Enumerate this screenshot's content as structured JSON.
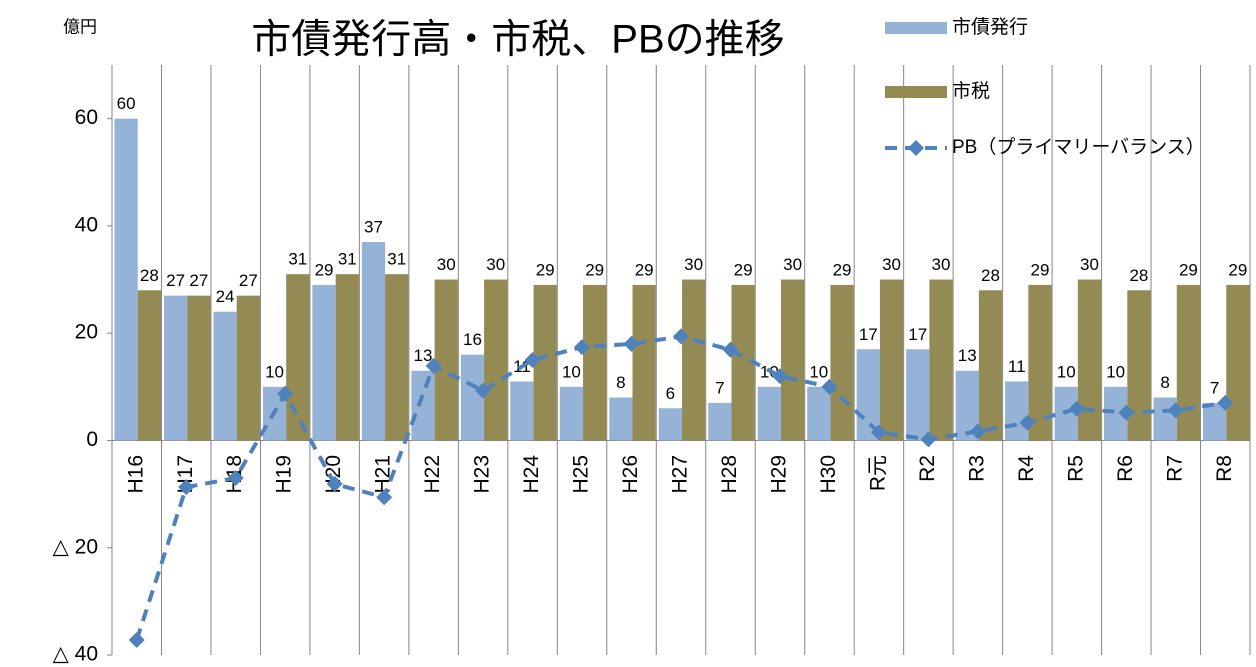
{
  "chart_data": {
    "type": "bar",
    "title": "市債発行高・市税、PBの推移",
    "y_label": "億円",
    "categories": [
      "H16",
      "H17",
      "H18",
      "H19",
      "H20",
      "H21",
      "H22",
      "H23",
      "H24",
      "H25",
      "H26",
      "H27",
      "H28",
      "H29",
      "H30",
      "R元",
      "R2",
      "R3",
      "R4",
      "R5",
      "R6",
      "R7",
      "R8"
    ],
    "series": [
      {
        "name": "市債発行",
        "type": "bar",
        "color": "#95b3d7",
        "values": [
          60,
          27,
          24,
          10,
          29,
          37,
          13,
          16,
          11,
          10,
          8,
          6,
          7,
          10,
          10,
          17,
          17,
          13,
          11,
          10,
          10,
          8,
          7
        ]
      },
      {
        "name": "市税",
        "type": "bar",
        "color": "#948a54",
        "values": [
          28,
          27,
          27,
          31,
          31,
          31,
          30,
          30,
          29,
          29,
          29,
          30,
          29,
          30,
          29,
          30,
          30,
          28,
          29,
          30,
          28,
          29,
          29
        ]
      },
      {
        "name": "PB（プライマリーバランス）",
        "type": "line",
        "color": "#4f81bd",
        "values": [
          -37.2,
          -8.7,
          -7,
          8.7,
          -8.1,
          -10.6,
          13.9,
          9.3,
          15,
          17.4,
          18,
          19.4,
          16.9,
          12,
          10,
          1.5,
          0.2,
          1.7,
          3.3,
          5.9,
          5.2,
          5.6,
          7
        ]
      }
    ],
    "ylim": [
      -40,
      70
    ],
    "yticks": [
      {
        "value": -40,
        "label": "△ 40"
      },
      {
        "value": -20,
        "label": "△ 20"
      },
      0,
      20,
      40,
      60
    ],
    "grid": true,
    "legend": "top-right"
  }
}
